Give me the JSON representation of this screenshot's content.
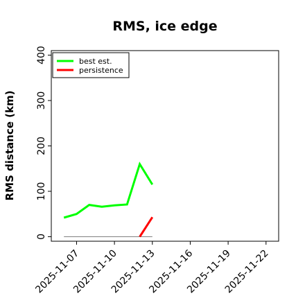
{
  "chart_data": {
    "type": "line",
    "title": "RMS, ice edge",
    "xlabel": "",
    "ylabel": "RMS distance (km)",
    "xlim": [
      "2025-11-05",
      "2025-11-23"
    ],
    "ylim": [
      -10,
      410
    ],
    "x_ticks": [
      "2025-11-07",
      "2025-11-10",
      "2025-11-13",
      "2025-11-16",
      "2025-11-19",
      "2025-11-22"
    ],
    "y_ticks": [
      "0",
      "100",
      "200",
      "300",
      "400"
    ],
    "legend": {
      "position": "top-left",
      "entries": [
        "best est.",
        "persistence"
      ]
    },
    "series": [
      {
        "name": "best est.",
        "color": "#00ff00",
        "x": [
          "2025-11-06",
          "2025-11-07",
          "2025-11-08",
          "2025-11-09",
          "2025-11-10",
          "2025-11-11",
          "2025-11-12",
          "2025-11-13"
        ],
        "y": [
          42,
          50,
          70,
          66,
          69,
          71,
          160,
          115
        ]
      },
      {
        "name": "persistence",
        "color": "#ff0000",
        "x": [
          "2025-11-12",
          "2025-11-13"
        ],
        "y": [
          0,
          43
        ]
      },
      {
        "name": "",
        "color": "#808080",
        "x": [
          "2025-11-06",
          "2025-11-13"
        ],
        "y": [
          0,
          0
        ]
      }
    ]
  }
}
